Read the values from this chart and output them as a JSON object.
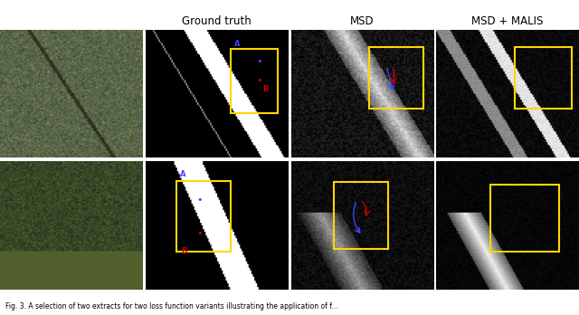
{
  "title_row1_col2": "Ground truth",
  "title_row1_col3": "MSD",
  "title_row1_col4": "MSD + MALIS",
  "caption": "Fig. 3. A selection of two extracts for two loss function variants illustrating the application of f...",
  "background_color": "#ffffff",
  "yellow_box_color": "#FFD700",
  "label_A_color": "#4444FF",
  "label_B_color": "#CC0000"
}
